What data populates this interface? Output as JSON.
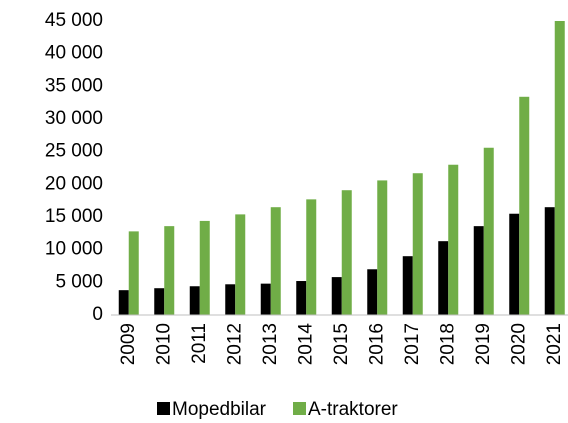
{
  "chart_data": {
    "type": "bar",
    "categories": [
      "2009",
      "2010",
      "2011",
      "2012",
      "2013",
      "2014",
      "2015",
      "2016",
      "2017",
      "2018",
      "2019",
      "2020",
      "2021"
    ],
    "series": [
      {
        "name": "Mopedbilar",
        "color": "#000000",
        "values": [
          3800,
          4100,
          4400,
          4700,
          4800,
          5200,
          5800,
          7000,
          9000,
          11300,
          13600,
          15500,
          16500
        ]
      },
      {
        "name": "A-traktorer",
        "color": "#70ad47",
        "values": [
          12800,
          13600,
          14400,
          15400,
          16500,
          17700,
          19100,
          20600,
          21700,
          23000,
          25600,
          33400,
          45000
        ]
      }
    ],
    "ylim": [
      0,
      45000
    ],
    "yticks": [
      0,
      {
        "value": 5000,
        "label": "5 000"
      },
      {
        "value": 10000,
        "label": "10 000"
      },
      {
        "value": 15000,
        "label": "15 000"
      },
      {
        "value": 20000,
        "label": "20 000"
      },
      {
        "value": 25000,
        "label": "25 000"
      },
      {
        "value": 30000,
        "label": "30 000"
      },
      {
        "value": 35000,
        "label": "35 000"
      },
      {
        "value": 40000,
        "label": "40 000"
      },
      {
        "value": 45000,
        "label": "45 000"
      }
    ],
    "grid": false,
    "legend": "bottom"
  }
}
